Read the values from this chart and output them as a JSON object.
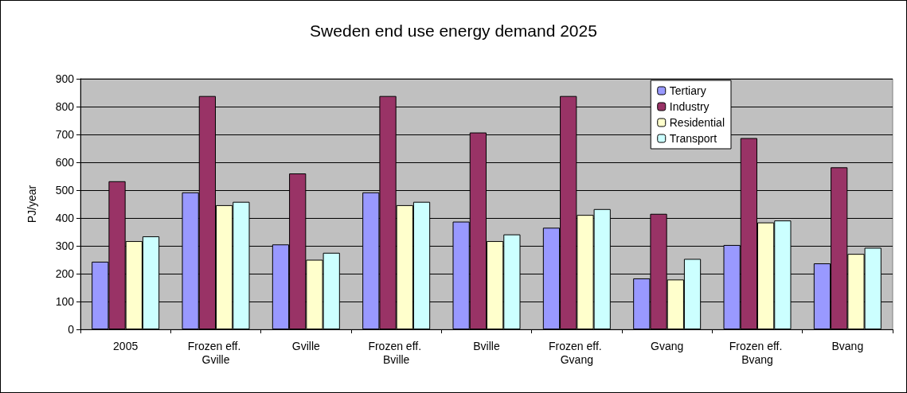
{
  "chart_data": {
    "type": "bar",
    "title": "Sweden end use energy demand 2025",
    "ylabel": "PJ/year",
    "categories": [
      "2005",
      "Frozen eff. Gville",
      "Gville",
      "Frozen eff. Bville",
      "Bville",
      "Frozen eff. Gvang",
      "Gvang",
      "Frozen eff. Bvang",
      "Bvang"
    ],
    "series": [
      {
        "name": "Tertiary",
        "color": "#9999ff",
        "values": [
          243,
          492,
          305,
          492,
          387,
          365,
          183,
          303,
          237
        ]
      },
      {
        "name": "Industry",
        "color": "#993366",
        "values": [
          532,
          838,
          560,
          838,
          707,
          838,
          415,
          687,
          582
        ]
      },
      {
        "name": "Residential",
        "color": "#ffffcc",
        "values": [
          317,
          446,
          250,
          446,
          317,
          411,
          179,
          384,
          271
        ]
      },
      {
        "name": "Transport",
        "color": "#ccffff",
        "values": [
          334,
          458,
          275,
          458,
          341,
          432,
          253,
          391,
          293
        ]
      }
    ],
    "ylim": [
      0,
      900
    ],
    "yticks": [
      0,
      100,
      200,
      300,
      400,
      500,
      600,
      700,
      800,
      900
    ],
    "grid": "y",
    "legend": "top right"
  }
}
